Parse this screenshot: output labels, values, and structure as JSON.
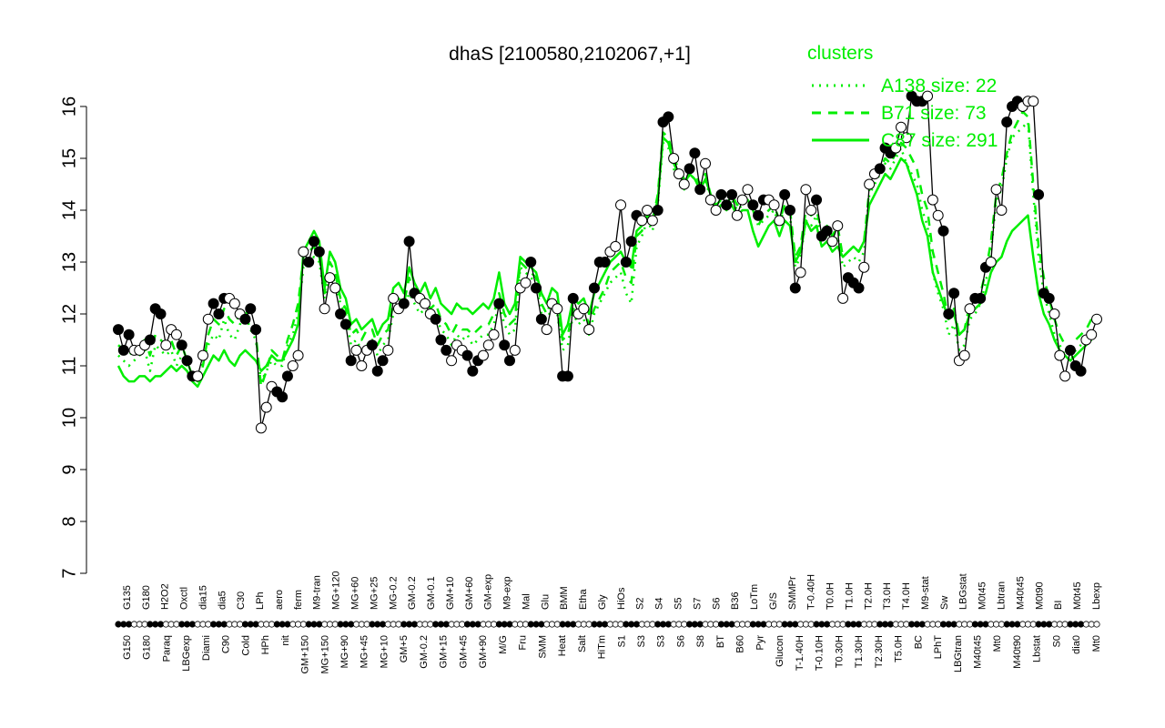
{
  "chart_data": {
    "type": "line",
    "title": "dhaS [2100580,2102067,+1]",
    "xlabel": "",
    "ylabel": "",
    "ylim": [
      7,
      16
    ],
    "yticks": [
      7,
      8,
      9,
      10,
      11,
      12,
      13,
      14,
      15,
      16
    ],
    "grid": false,
    "legend": {
      "title": "clusters",
      "placement": "top-right",
      "color": "#00ee00",
      "entries": [
        {
          "label": "A138 size: 22",
          "style": "dotted"
        },
        {
          "label": "B71 size: 73",
          "style": "dashed"
        },
        {
          "label": "C87 size: 291",
          "style": "solid"
        }
      ]
    },
    "colors": {
      "series": "#000000",
      "clusters": "#00ee00"
    },
    "top_labels": [
      "G135",
      "G180",
      "H2O2",
      "Oxctl",
      "dia15",
      "dia5",
      "C30",
      "LPh",
      "aero",
      "ferm",
      "M9-tran",
      "MG+120",
      "MG+60",
      "MG+25",
      "MG-0.2",
      "GM-0.2",
      "GM-0.1",
      "GM+10",
      "GM+60",
      "GM-exp",
      "M9-exp",
      "Mal",
      "Glu",
      "BMM",
      "Etha",
      "Gly",
      "HiOs",
      "S2",
      "S4",
      "S5",
      "S7",
      "S6",
      "B36",
      "LoTm",
      "G/S",
      "SMMPr",
      "T-0.40H",
      "T0.0H",
      "T1.0H",
      "T2.0H",
      "T3.0H",
      "T4.0H",
      "M9-stat",
      "Sw",
      "LBGstat",
      "M0t45",
      "Lbtran",
      "M40t45",
      "M0t90",
      "BI",
      "M0t45",
      "Lbexp"
    ],
    "bottom_labels": [
      "G150",
      "G180",
      "Paraq",
      "LBGexp",
      "Diami",
      "C90",
      "Cold",
      "HPh",
      "nit",
      "GM+150",
      "MG+150",
      "MG+90",
      "MG+45",
      "MG+10",
      "GM+5",
      "GM-0.2",
      "GM+15",
      "GM+45",
      "GM+90",
      "M/G",
      "Fru",
      "SMM",
      "Heat",
      "Salt",
      "HiTm",
      "S1",
      "S3",
      "S3",
      "S6",
      "S8",
      "BT",
      "B60",
      "Pyr",
      "Glucon",
      "T-1.40H",
      "T-0.10H",
      "T0.30H",
      "T1.30H",
      "T2.30H",
      "T5.0H",
      "BC",
      "LPhT",
      "LBGtran",
      "M40t45",
      "Mt0",
      "M40t90",
      "Lbstat",
      "S0",
      "dia0",
      "Mt0"
    ],
    "series": [
      {
        "name": "",
        "values": [
          11.7,
          11.3,
          11.6,
          11.3,
          11.3,
          11.4,
          11.5,
          12.1,
          12.0,
          11.4,
          11.7,
          11.6,
          11.4,
          11.1,
          10.8,
          10.8,
          11.2,
          11.9,
          12.2,
          12.0,
          12.3,
          12.3,
          12.2,
          12.0,
          11.9,
          12.1,
          11.7,
          9.8,
          10.2,
          10.6,
          10.5,
          10.4,
          10.8,
          11.0,
          11.2,
          13.2,
          13.0,
          13.4,
          13.2,
          12.1,
          12.7,
          12.5,
          12.0,
          11.8,
          11.1,
          11.3,
          11.0,
          11.3,
          11.4,
          10.9,
          11.1,
          11.3,
          12.3,
          12.1,
          12.2,
          13.4,
          12.4,
          12.3,
          12.2,
          12.0,
          11.9,
          11.5,
          11.3,
          11.1,
          11.4,
          11.3,
          11.2,
          10.9,
          11.1,
          11.2,
          11.4,
          11.6,
          12.2,
          11.4,
          11.1,
          11.3,
          12.5,
          12.6,
          13.0,
          12.5,
          11.9,
          11.7,
          12.2,
          12.1,
          10.8,
          10.8,
          12.3,
          12.0,
          12.1,
          11.7,
          12.5,
          13.0,
          13.0,
          13.2,
          13.3,
          14.1,
          13.0,
          13.4,
          13.9,
          13.8,
          14.0,
          13.8,
          14.0,
          15.7,
          15.8,
          15.0,
          14.7,
          14.5,
          14.8,
          15.1,
          14.4,
          14.9,
          14.2,
          14.0,
          14.3,
          14.1,
          14.3,
          13.9,
          14.2,
          14.4,
          14.1,
          13.9,
          14.2,
          14.2,
          14.1,
          13.8,
          14.3,
          14.0,
          12.5,
          12.8,
          14.4,
          14.0,
          14.2,
          13.5,
          13.6,
          13.4,
          13.7,
          12.3,
          12.7,
          12.6,
          12.5,
          12.9,
          14.5,
          14.7,
          14.8,
          15.2,
          15.1,
          15.2,
          15.6,
          15.4,
          16.2,
          16.1,
          16.1,
          16.2,
          14.2,
          13.9,
          13.6,
          12.0,
          12.4,
          11.1,
          11.2,
          12.1,
          12.3,
          12.3,
          12.9,
          13.0,
          14.4,
          14.0,
          15.7,
          16.0,
          16.1,
          16.0,
          16.1,
          16.1,
          14.3,
          12.4,
          12.3,
          12.0,
          11.2,
          10.8,
          11.3,
          11.0,
          10.9,
          11.5,
          11.6,
          11.9
        ]
      },
      {
        "name": "A138 size: 22",
        "values": [
          11.2,
          11.1,
          11.0,
          11.1,
          11.2,
          11.3,
          10.9,
          11.4,
          11.3,
          11.2,
          11.3,
          11.0,
          11.2,
          11.0,
          10.8,
          10.7,
          11.1,
          11.4,
          11.6,
          11.5,
          11.9,
          11.6,
          11.5,
          11.8,
          12.0,
          11.7,
          11.5,
          10.7,
          10.9,
          11.1,
          11.0,
          11.0,
          11.4,
          11.6,
          12.0,
          12.9,
          13.0,
          13.1,
          13.0,
          12.3,
          12.8,
          12.6,
          12.2,
          12.0,
          11.4,
          11.5,
          11.3,
          11.4,
          11.5,
          11.2,
          11.4,
          11.5,
          12.0,
          12.1,
          12.1,
          12.4,
          12.2,
          12.0,
          12.1,
          11.9,
          12.0,
          11.7,
          11.6,
          11.4,
          11.6,
          11.5,
          11.6,
          11.4,
          11.5,
          11.6,
          11.6,
          11.8,
          12.2,
          11.8,
          11.6,
          11.7,
          12.9,
          12.8,
          12.7,
          12.6,
          12.0,
          11.9,
          12.1,
          12.0,
          11.3,
          11.4,
          12.0,
          11.8,
          11.9,
          11.6,
          12.0,
          12.2,
          12.4,
          12.6,
          12.7,
          12.8,
          12.4,
          12.2,
          13.3,
          13.5,
          13.8,
          13.6,
          14.1,
          15.3,
          15.2,
          14.8,
          14.6,
          14.4,
          14.7,
          14.6,
          14.4,
          14.6,
          14.2,
          14.0,
          14.1,
          14.0,
          14.2,
          14.0,
          14.1,
          14.2,
          14.0,
          13.7,
          13.8,
          13.9,
          14.0,
          13.7,
          14.1,
          13.9,
          12.9,
          13.1,
          13.8,
          13.7,
          13.9,
          13.4,
          13.5,
          13.3,
          13.5,
          12.9,
          13.0,
          13.1,
          13.0,
          13.2,
          14.3,
          14.5,
          14.7,
          14.9,
          14.8,
          15.0,
          15.2,
          14.9,
          14.7,
          14.5,
          14.0,
          13.7,
          12.8,
          12.4,
          12.1,
          11.6,
          11.8,
          11.3,
          11.4,
          11.9,
          12.0,
          12.2,
          12.6,
          13.2,
          14.2,
          14.4,
          15.0,
          15.4,
          15.5,
          15.6,
          15.7,
          14.3,
          13.1,
          12.4,
          12.0,
          11.6,
          11.4,
          11.2,
          11.1,
          11.3,
          11.4,
          11.5,
          11.7
        ]
      },
      {
        "name": "B71 size: 73",
        "values": [
          11.4,
          11.3,
          11.2,
          11.3,
          11.4,
          11.5,
          11.2,
          11.6,
          11.5,
          11.4,
          11.5,
          11.2,
          11.4,
          11.1,
          10.8,
          10.7,
          11.0,
          11.6,
          11.9,
          11.8,
          12.1,
          11.9,
          11.8,
          12.0,
          12.1,
          11.8,
          11.6,
          10.6,
          10.9,
          11.3,
          11.2,
          11.1,
          11.5,
          11.8,
          12.2,
          13.1,
          13.2,
          13.3,
          13.1,
          12.4,
          13.0,
          12.8,
          12.3,
          12.1,
          11.6,
          11.7,
          11.5,
          11.7,
          11.7,
          11.4,
          11.6,
          11.7,
          12.2,
          12.3,
          12.2,
          12.7,
          12.4,
          12.2,
          12.3,
          12.1,
          12.2,
          11.9,
          11.8,
          11.6,
          11.8,
          11.7,
          11.7,
          11.6,
          11.7,
          11.8,
          11.8,
          12.0,
          12.4,
          12.0,
          11.8,
          11.9,
          13.0,
          12.9,
          12.8,
          12.7,
          12.2,
          12.0,
          12.3,
          12.2,
          11.5,
          11.6,
          12.1,
          12.0,
          12.1,
          11.8,
          12.1,
          12.3,
          12.5,
          12.8,
          12.9,
          13.0,
          12.7,
          12.6,
          13.5,
          13.6,
          13.9,
          13.8,
          14.3,
          15.5,
          15.4,
          15.0,
          14.8,
          14.6,
          14.8,
          14.7,
          14.5,
          14.7,
          14.3,
          14.1,
          14.2,
          14.1,
          14.3,
          14.1,
          14.2,
          14.2,
          14.0,
          13.7,
          13.9,
          14.0,
          14.1,
          13.8,
          14.1,
          14.0,
          13.1,
          13.3,
          14.0,
          13.9,
          14.0,
          13.6,
          13.7,
          13.5,
          13.7,
          13.1,
          13.2,
          13.3,
          13.2,
          13.4,
          14.4,
          14.6,
          14.8,
          15.0,
          14.9,
          15.1,
          15.3,
          15.2,
          15.0,
          14.8,
          14.3,
          14.0,
          13.2,
          12.8,
          12.4,
          11.9,
          12.1,
          11.6,
          11.7,
          12.2,
          12.3,
          12.4,
          12.8,
          13.4,
          14.3,
          14.6,
          15.1,
          15.5,
          15.7,
          15.9,
          15.8,
          14.5,
          13.3,
          12.7,
          12.3,
          11.9,
          11.6,
          11.4,
          11.3,
          11.5,
          11.6,
          11.7,
          11.9
        ]
      },
      {
        "name": "C87 size: 291",
        "values": [
          11.0,
          10.8,
          10.7,
          10.7,
          10.8,
          10.8,
          10.7,
          10.8,
          10.8,
          10.9,
          11.0,
          10.9,
          11.0,
          10.9,
          10.7,
          10.6,
          10.8,
          11.0,
          11.2,
          11.1,
          11.3,
          11.1,
          11.0,
          11.2,
          11.3,
          11.2,
          11.1,
          10.9,
          11.0,
          11.2,
          11.1,
          11.1,
          11.3,
          11.5,
          11.8,
          13.2,
          13.4,
          13.6,
          13.4,
          12.5,
          13.2,
          13.0,
          12.5,
          12.3,
          11.8,
          11.9,
          11.7,
          11.8,
          11.9,
          11.6,
          11.8,
          11.9,
          12.5,
          12.6,
          12.4,
          12.9,
          12.6,
          12.4,
          12.6,
          12.3,
          12.5,
          12.2,
          12.1,
          12.0,
          12.2,
          12.1,
          12.1,
          12.0,
          12.1,
          12.2,
          12.1,
          12.3,
          12.8,
          12.2,
          12.0,
          12.2,
          13.1,
          13.0,
          12.9,
          12.8,
          12.4,
          12.2,
          12.5,
          12.4,
          11.6,
          11.8,
          12.3,
          12.2,
          12.3,
          12.0,
          12.4,
          12.6,
          12.8,
          13.0,
          13.1,
          13.2,
          13.0,
          12.9,
          13.6,
          13.7,
          13.9,
          13.8,
          14.2,
          15.4,
          15.3,
          14.9,
          14.7,
          14.5,
          14.7,
          14.6,
          14.4,
          14.6,
          14.3,
          14.0,
          14.1,
          14.0,
          14.1,
          13.9,
          14.0,
          14.0,
          13.6,
          13.3,
          13.5,
          13.7,
          13.8,
          13.5,
          13.8,
          13.7,
          13.0,
          13.2,
          13.8,
          13.6,
          13.7,
          13.3,
          13.4,
          13.2,
          13.3,
          13.1,
          13.2,
          13.3,
          13.2,
          13.4,
          14.1,
          14.3,
          14.5,
          14.7,
          14.6,
          14.8,
          15.0,
          14.9,
          14.6,
          14.3,
          13.8,
          13.5,
          12.8,
          12.5,
          12.2,
          11.9,
          12.0,
          11.6,
          11.7,
          12.0,
          12.1,
          12.2,
          12.4,
          12.8,
          13.0,
          13.1,
          13.4,
          13.6,
          13.7,
          13.8,
          13.9,
          13.1,
          12.4,
          12.0,
          11.8,
          11.5,
          11.3,
          11.2,
          11.1,
          11.2,
          11.3,
          11.4,
          11.5
        ]
      }
    ]
  }
}
